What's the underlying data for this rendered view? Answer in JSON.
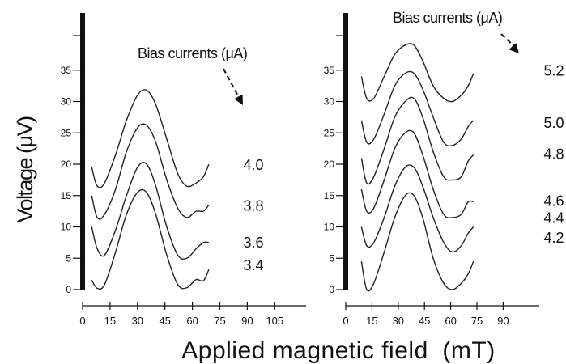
{
  "chart_data": {
    "type": "line",
    "ylabel": "Voltage (μV)",
    "xlabel": "Applied magnetic field  (mT)",
    "panels": [
      {
        "name": "left",
        "annotation": "Bias currents (μA)",
        "y_ticks": [
          "0",
          "5",
          "10",
          "15",
          "20",
          "25",
          "30",
          "35"
        ],
        "x_ticks": [
          "0",
          "15",
          "30",
          "45",
          "60",
          "75",
          "90",
          "105"
        ],
        "xlim": [
          0,
          105
        ],
        "ylim": [
          0,
          40
        ],
        "series": [
          {
            "label": "3.4",
            "x": [
              5,
              8,
              12,
              18,
              24,
              30,
              35,
              40,
              46,
              52,
              57,
              62,
              66,
              69
            ],
            "y": [
              1.5,
              0.2,
              0.8,
              6,
              12,
              15.5,
              15.5,
              12,
              5.5,
              0.8,
              0.3,
              1.6,
              1.4,
              3.2
            ]
          },
          {
            "label": "3.6",
            "x": [
              5,
              8,
              12,
              18,
              24,
              30,
              35,
              40,
              46,
              52,
              57,
              62,
              66,
              69
            ],
            "y": [
              10,
              6.5,
              5.5,
              9.5,
              15,
              19.5,
              20,
              16.5,
              10,
              5.5,
              5,
              6.5,
              7.5,
              7.5
            ]
          },
          {
            "label": "3.8",
            "x": [
              5,
              8,
              12,
              18,
              24,
              30,
              35,
              40,
              46,
              52,
              57,
              62,
              66,
              69
            ],
            "y": [
              15,
              11.5,
              12,
              16,
              22,
              25.8,
              26.2,
              23.5,
              17.5,
              13,
              11.5,
              12.5,
              12.5,
              13.5
            ]
          },
          {
            "label": "4.0",
            "x": [
              5,
              8,
              12,
              18,
              24,
              30,
              35,
              40,
              46,
              52,
              57,
              62,
              66,
              69
            ],
            "y": [
              19.5,
              16.5,
              17,
              21.5,
              27,
              31,
              31.8,
              29.5,
              24,
              18.5,
              16.5,
              17,
              18,
              20
            ]
          }
        ]
      },
      {
        "name": "right",
        "annotation": "Bias currents (μA)",
        "y_ticks": [
          "0",
          "5",
          "10",
          "15",
          "20",
          "25",
          "30",
          "35"
        ],
        "x_ticks": [
          "0",
          "15",
          "30",
          "45",
          "60",
          "75",
          "90"
        ],
        "xlim": [
          0,
          105
        ],
        "ylim": [
          0,
          40
        ],
        "series": [
          {
            "label": "4.2",
            "x": [
              9,
              12,
              16,
              22,
              28,
              34,
              39,
              44,
              50,
              56,
              61,
              66,
              70,
              73
            ],
            "y": [
              4.5,
              0,
              1,
              6,
              11.5,
              15,
              15,
              11.5,
              5,
              1,
              0,
              1,
              2.5,
              4.5
            ]
          },
          {
            "label": "4.4",
            "x": [
              9,
              12,
              16,
              22,
              28,
              34,
              39,
              44,
              50,
              56,
              61,
              66,
              70,
              73
            ],
            "y": [
              10,
              7,
              7.5,
              11.5,
              16.5,
              19.5,
              19.5,
              16.5,
              11.5,
              7.5,
              6,
              7,
              9,
              10
            ]
          },
          {
            "label": "4.6",
            "x": [
              9,
              12,
              16,
              22,
              28,
              34,
              39,
              44,
              50,
              56,
              61,
              66,
              70,
              73
            ],
            "y": [
              16,
              12.5,
              13,
              17.5,
              22.5,
              25,
              25,
              21.5,
              16,
              12,
              11.5,
              12,
              14,
              14
            ]
          },
          {
            "label": "4.8",
            "x": [
              9,
              12,
              16,
              22,
              28,
              34,
              39,
              44,
              50,
              56,
              61,
              66,
              70,
              73
            ],
            "y": [
              21,
              17,
              18,
              22.5,
              27.5,
              30,
              30.5,
              27.5,
              22,
              18,
              17.5,
              18,
              20.5,
              21.5
            ]
          },
          {
            "label": "5.0",
            "x": [
              9,
              12,
              16,
              22,
              28,
              34,
              39,
              44,
              50,
              56,
              61,
              66,
              70,
              73
            ],
            "y": [
              27,
              23.5,
              24,
              28,
              32.5,
              34.5,
              34.5,
              32,
              27.5,
              23.5,
              23,
              24,
              26,
              27
            ]
          },
          {
            "label": "5.2",
            "x": [
              9,
              12,
              16,
              22,
              28,
              34,
              39,
              44,
              50,
              56,
              61,
              66,
              70,
              73
            ],
            "y": [
              34,
              30.5,
              30.5,
              34,
              37.5,
              39,
              39,
              36.5,
              32.5,
              30.5,
              30,
              31,
              32.5,
              34.5
            ]
          }
        ]
      }
    ]
  }
}
